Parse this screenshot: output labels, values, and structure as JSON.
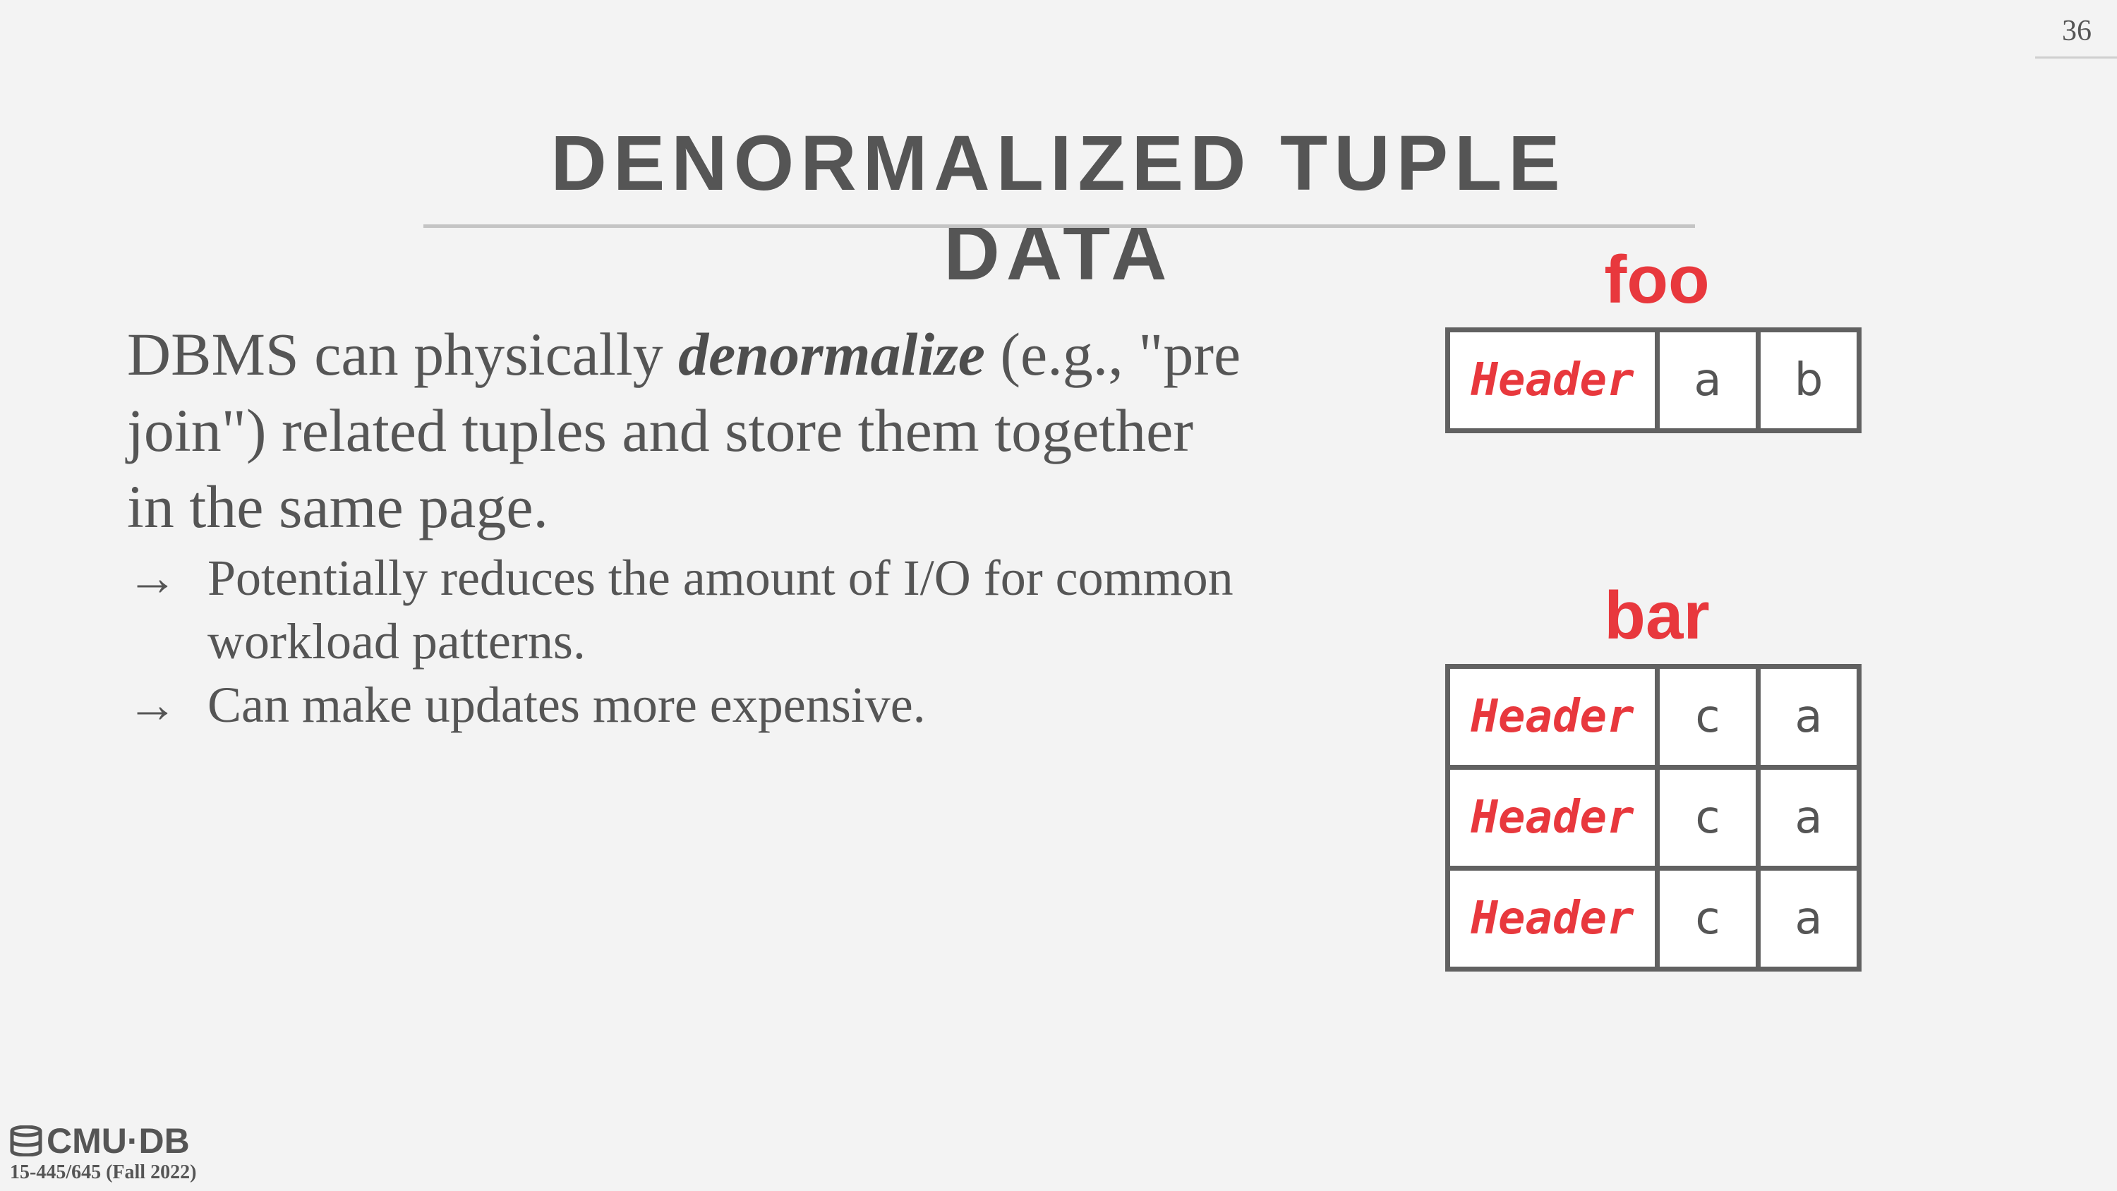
{
  "slide": {
    "number": "36",
    "title": "DENORMALIZED TUPLE DATA"
  },
  "body": {
    "lead_prefix": "DBMS can physically ",
    "lead_emphasis": "denormalize",
    "lead_suffix": " (e.g., \"pre join\") related tuples and store them together in the same page.",
    "bullets": [
      {
        "arrow": "→",
        "text": "Potentially reduces the amount of I/O for common workload patterns."
      },
      {
        "arrow": "→",
        "text": "Can make updates more expensive."
      }
    ]
  },
  "tables": [
    {
      "name": "foo",
      "rows": [
        [
          "Header",
          "a",
          "b"
        ]
      ]
    },
    {
      "name": "bar",
      "rows": [
        [
          "Header",
          "c",
          "a"
        ],
        [
          "Header",
          "c",
          "a"
        ],
        [
          "Header",
          "c",
          "a"
        ]
      ]
    }
  ],
  "footer": {
    "logo_text": "CMU·DB",
    "logo_icon": "database-icon",
    "course": "15-445/645 (Fall 2022)"
  },
  "colors": {
    "accent": "#e8383d",
    "text": "#555555",
    "background": "#f3f3f3",
    "table_border": "#616161"
  }
}
